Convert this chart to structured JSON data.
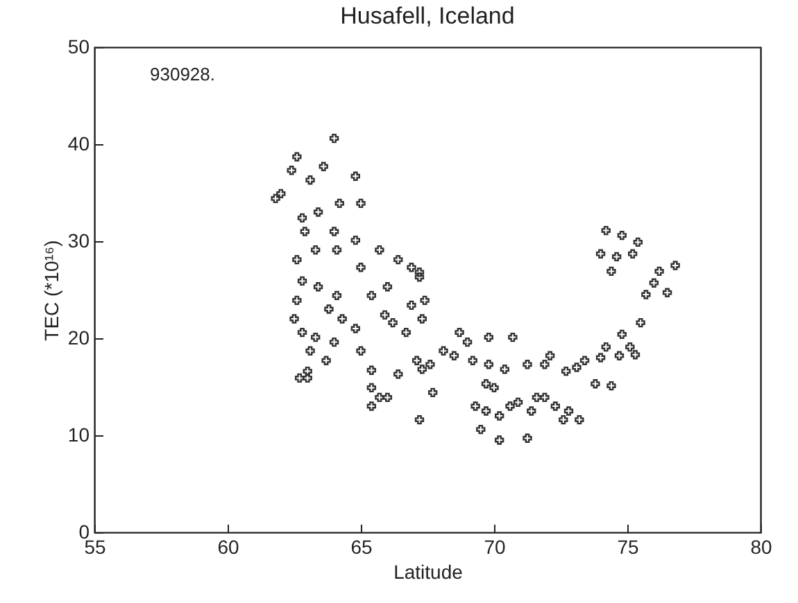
{
  "chart_data": {
    "type": "scatter",
    "title": "Husafell, Iceland",
    "xlabel": "Latitude",
    "ylabel": "TEC (*10¹⁶)",
    "annotations": [
      "930928."
    ],
    "xlim": [
      55,
      80
    ],
    "xticks": [
      55,
      60,
      65,
      70,
      75,
      80
    ],
    "ylim": [
      0,
      50
    ],
    "yticks": [
      0,
      10,
      20,
      30,
      40,
      50
    ],
    "grid": false,
    "marker": "cross",
    "series": [
      {
        "color": "#333333",
        "x": [
          74.2,
          74.8,
          75.4,
          74.0,
          74.6,
          75.2,
          74.4,
          76.2,
          76.8,
          76.0,
          75.7,
          76.5,
          75.5,
          74.8,
          75.1,
          75.3,
          74.2,
          74.7,
          74.0,
          73.4,
          74.4,
          73.8,
          73.2,
          71.25,
          70.2,
          72.6,
          72.3,
          71.9,
          71.6,
          71.9,
          72.1,
          72.7,
          73.1,
          71.25,
          70.7,
          68.7,
          69.0,
          69.8,
          69.3,
          69.7,
          69.5,
          70.2,
          70.6,
          70.9,
          70.0,
          69.7,
          70.4,
          69.8,
          69.2,
          68.5,
          68.1,
          67.6,
          67.3,
          67.7,
          67.2,
          67.2,
          67.4,
          67.3,
          71.4,
          72.8,
          64.0,
          62.6,
          62.0,
          61.8,
          62.4,
          63.1,
          63.6,
          64.8,
          65.0,
          64.2,
          63.4,
          62.8,
          62.9,
          64.0,
          64.1,
          63.3,
          62.6,
          64.8,
          65.0,
          65.7,
          66.4,
          66.9,
          67.2,
          66.0,
          65.4,
          64.1,
          63.4,
          62.8,
          62.6,
          63.8,
          64.3,
          62.5,
          62.8,
          63.3,
          64.0,
          63.1,
          63.7,
          63.0,
          62.7,
          63.0,
          64.8,
          65.0,
          65.4,
          65.4,
          65.7,
          66.0,
          66.4,
          67.1,
          66.7,
          66.2,
          65.9,
          66.9,
          65.4
        ],
        "values": [
          31.1,
          30.6,
          29.9,
          28.7,
          28.4,
          28.7,
          26.9,
          26.9,
          27.5,
          25.7,
          24.5,
          24.7,
          21.6,
          20.4,
          19.1,
          18.3,
          19.1,
          18.2,
          18.0,
          17.7,
          15.1,
          15.3,
          11.6,
          9.7,
          9.5,
          11.6,
          13.0,
          13.9,
          13.9,
          17.3,
          18.2,
          16.6,
          17.0,
          17.3,
          20.1,
          20.6,
          19.6,
          20.1,
          13.0,
          12.5,
          10.6,
          12.0,
          13.0,
          13.4,
          14.9,
          15.3,
          16.8,
          17.3,
          17.7,
          18.2,
          18.7,
          17.3,
          16.8,
          14.4,
          11.6,
          26.8,
          23.9,
          22.0,
          12.5,
          12.5,
          40.6,
          38.7,
          34.9,
          34.4,
          37.3,
          36.3,
          37.7,
          36.7,
          33.9,
          33.9,
          33.0,
          32.4,
          31.0,
          31.0,
          29.1,
          29.1,
          28.1,
          30.1,
          27.3,
          29.1,
          28.1,
          27.3,
          26.3,
          25.3,
          24.4,
          24.4,
          25.3,
          25.9,
          23.9,
          23.0,
          22.0,
          22.0,
          20.6,
          20.1,
          19.6,
          18.7,
          17.7,
          16.6,
          15.9,
          15.9,
          21.0,
          18.7,
          16.7,
          14.9,
          13.9,
          13.9,
          16.3,
          17.7,
          20.6,
          21.6,
          22.4,
          23.4,
          13.0
        ]
      }
    ]
  }
}
